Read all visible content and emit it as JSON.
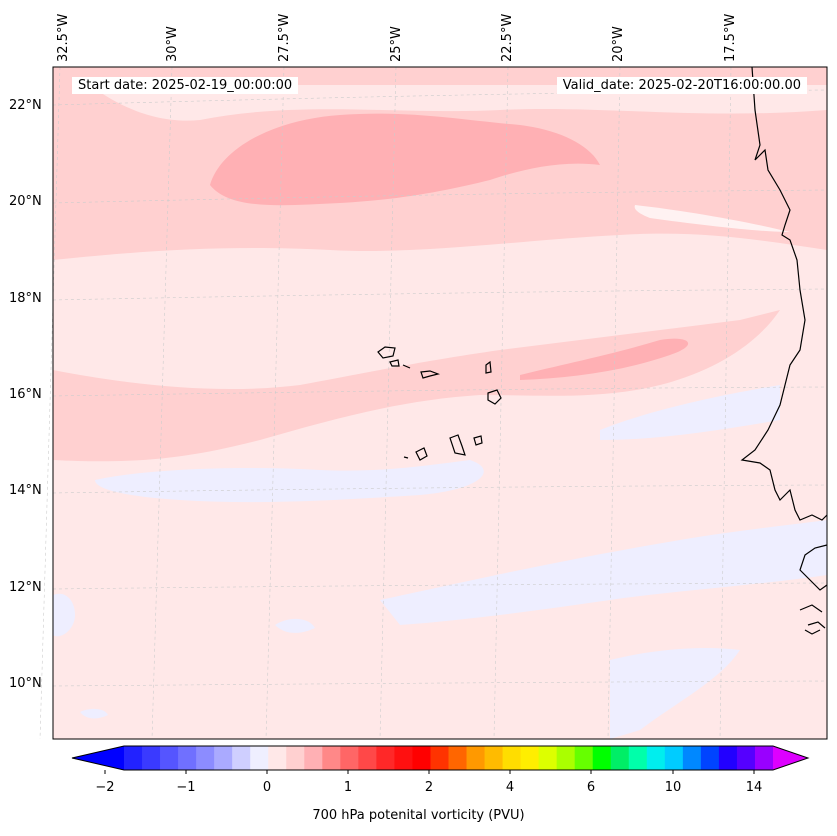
{
  "header": {
    "start_date": "Start date: 2025-02-19_00:00:00",
    "valid_date": "Valid_date: 2025-02-20T16:00:00.00"
  },
  "map": {
    "lon_labels": [
      "32.5°W",
      "30°W",
      "27.5°W",
      "25°W",
      "22.5°W",
      "20°W",
      "17.5°W"
    ],
    "lat_labels": [
      "22°N",
      "20°N",
      "18°N",
      "16°N",
      "14°N",
      "12°N",
      "10°N"
    ],
    "field_colors": {
      "background": "#ffe8e8",
      "light_pink": "#ffd0d0",
      "medium_pink": "#ffb0b4",
      "lavender": "#eeeeff",
      "near_white": "#fff2f2"
    }
  },
  "colorbar": {
    "label": "700 hPa potenital vorticity (PVU)",
    "tick_labels": [
      "−2",
      "−1",
      "0",
      "1",
      "2",
      "4",
      "6",
      "10",
      "14"
    ],
    "colors": [
      "#2222ff",
      "#3a3aff",
      "#5555ff",
      "#7070ff",
      "#8c8cff",
      "#aaaaff",
      "#cfcfff",
      "#efefff",
      "#ffe8e8",
      "#ffd0d0",
      "#ffb0b4",
      "#ff8888",
      "#ff6666",
      "#ff4848",
      "#ff2828",
      "#ff1010",
      "#ff0000",
      "#ff3300",
      "#ff6600",
      "#ff9900",
      "#ffbb00",
      "#ffdd00",
      "#ffee00",
      "#ddff00",
      "#aaff00",
      "#66ff00",
      "#00ff00",
      "#00ee66",
      "#00ffaa",
      "#00eeee",
      "#00ccff",
      "#0088ff",
      "#0044ff",
      "#2200ff",
      "#5500ff",
      "#9900ff"
    ],
    "under_color": "#0000ff",
    "over_color": "#dd00ff"
  }
}
